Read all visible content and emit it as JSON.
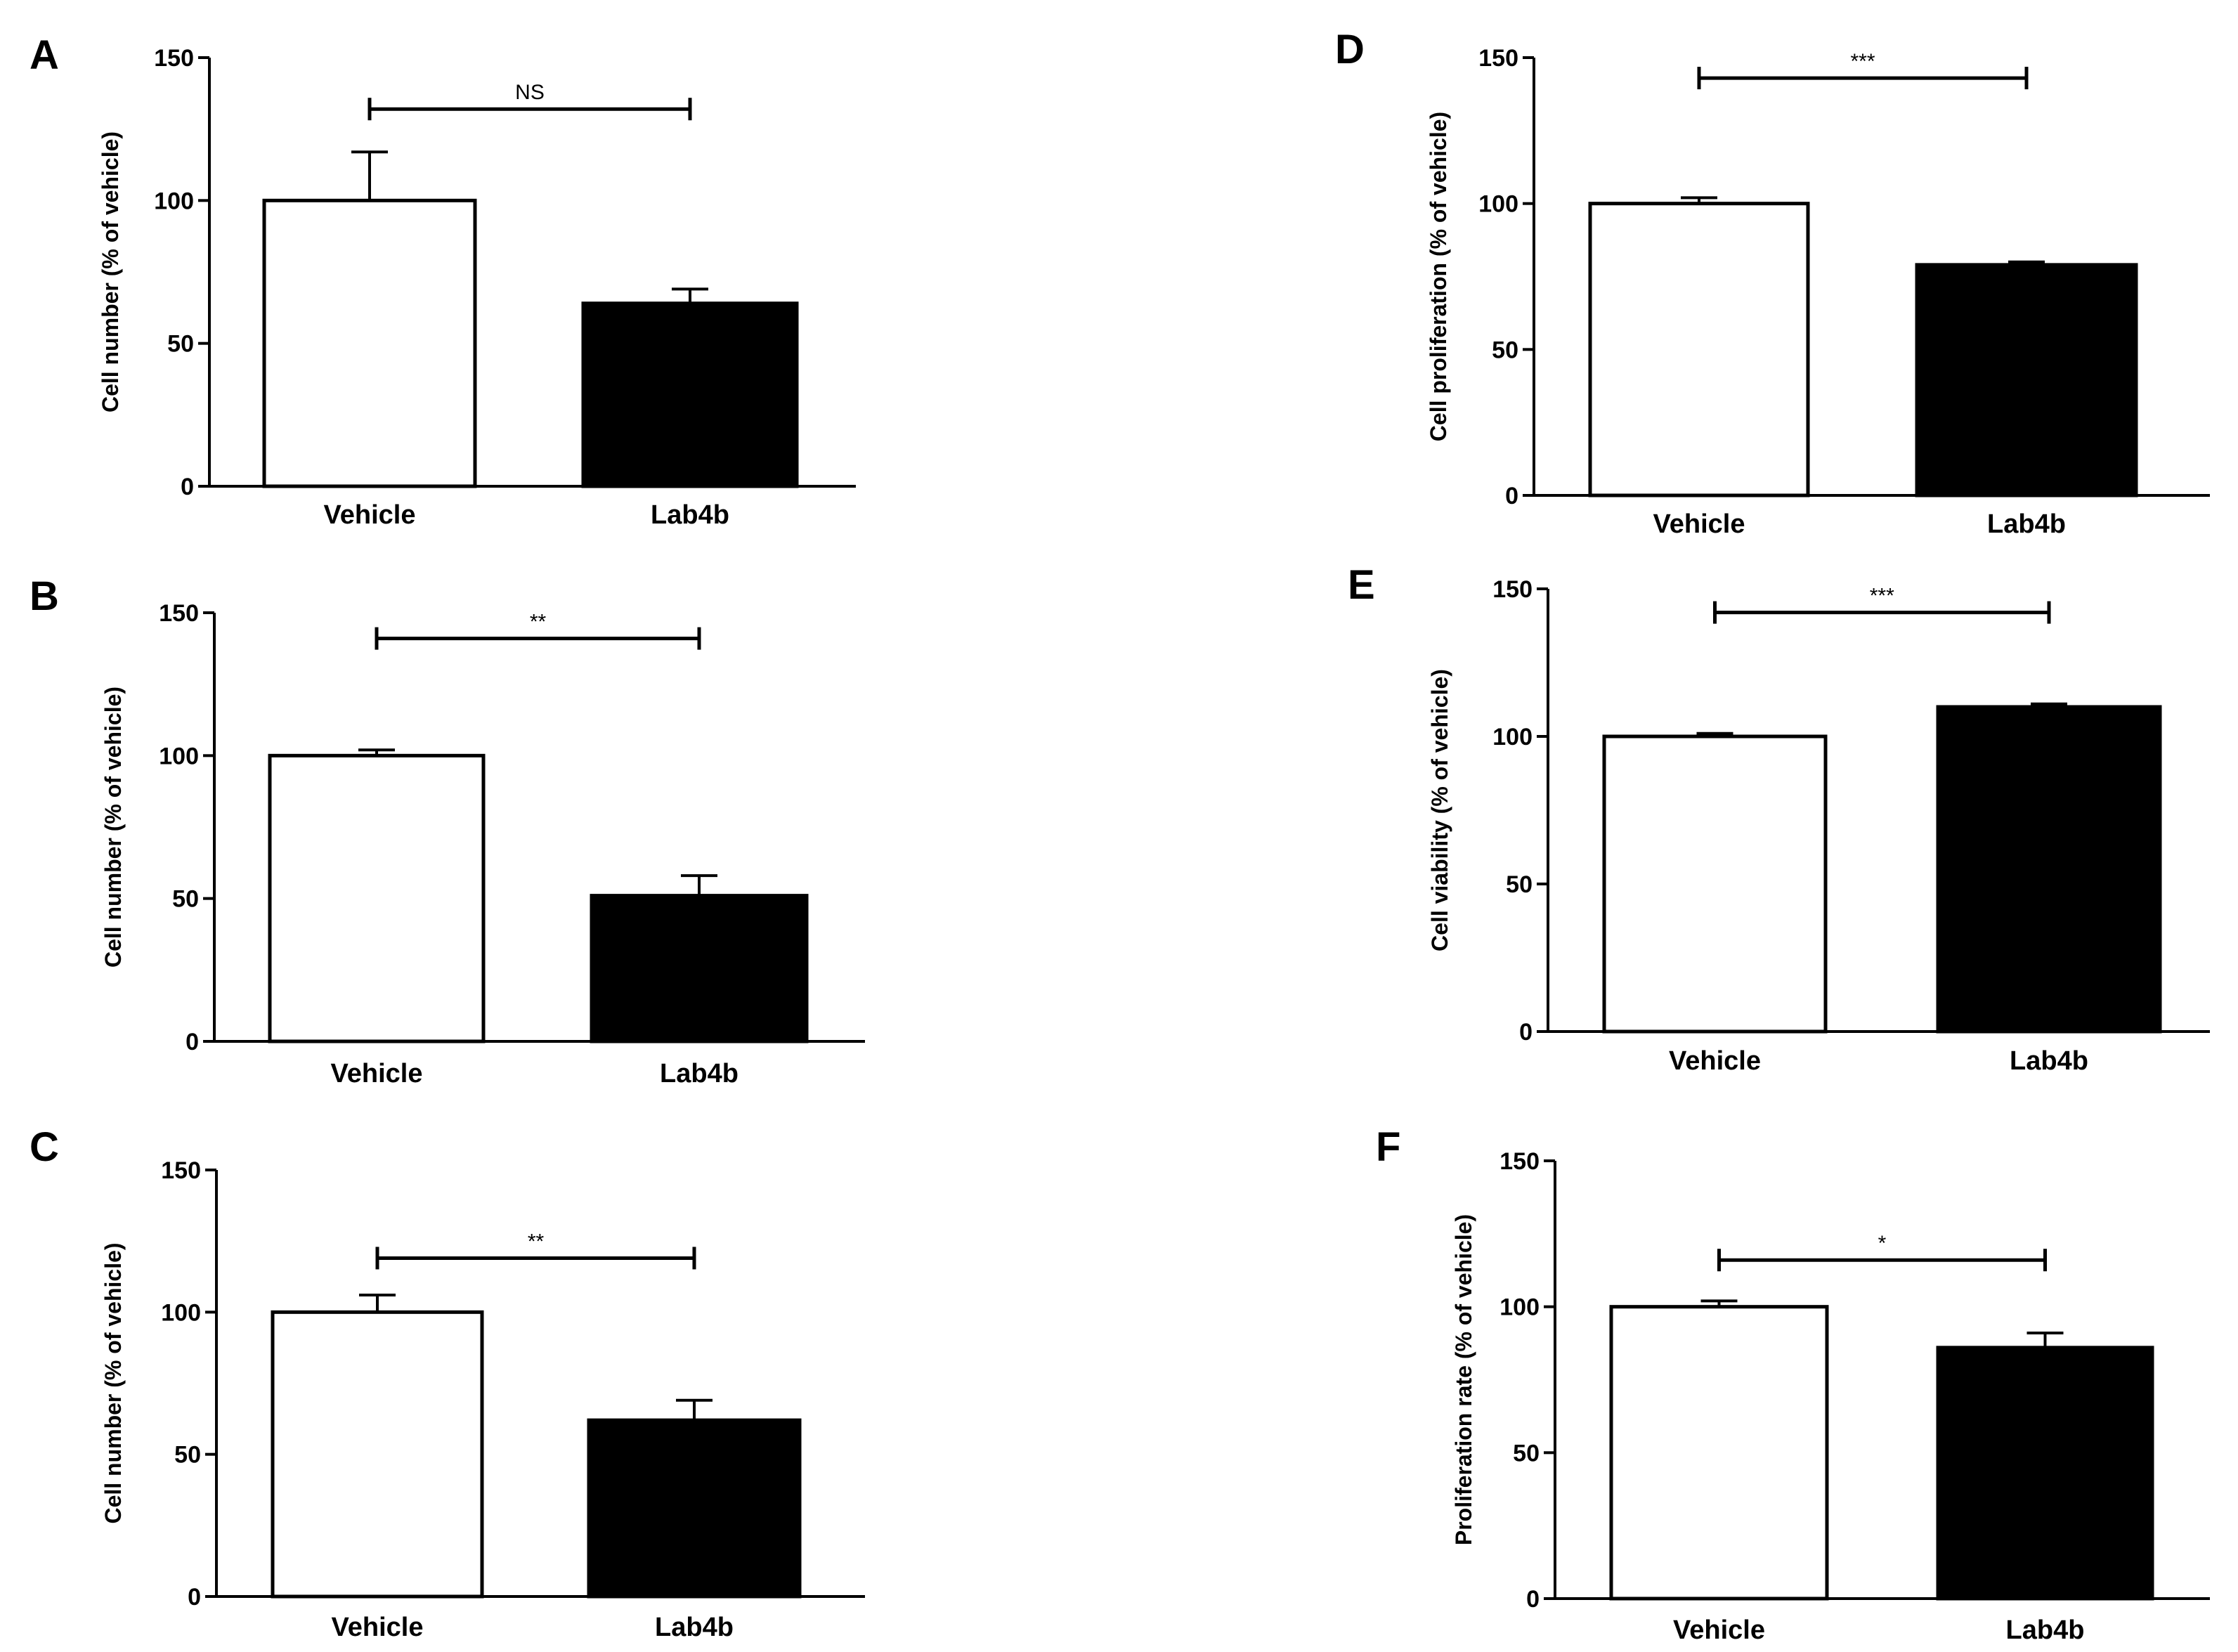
{
  "chart_data": [
    {
      "panel": "A",
      "type": "bar",
      "categories": [
        "Vehicle",
        "Lab4b"
      ],
      "values": [
        100,
        64
      ],
      "errors": [
        17,
        5
      ],
      "bar_colors": [
        "#ffffff",
        "#000000"
      ],
      "ylabel": "Cell number (% of vehicle)",
      "xlabel": "",
      "ylim": [
        0,
        150
      ],
      "yticks": [
        0,
        50,
        100,
        150
      ],
      "significance": {
        "label": "NS",
        "level": 132,
        "from": 0,
        "to": 1
      },
      "grid": false
    },
    {
      "panel": "B",
      "type": "bar",
      "categories": [
        "Vehicle",
        "Lab4b"
      ],
      "values": [
        100,
        51
      ],
      "errors": [
        2,
        7
      ],
      "bar_colors": [
        "#ffffff",
        "#000000"
      ],
      "ylabel": "Cell number (% of vehicle)",
      "xlabel": "",
      "ylim": [
        0,
        150
      ],
      "yticks": [
        0,
        50,
        100,
        150
      ],
      "significance": {
        "label": "**",
        "level": 141,
        "from": 0,
        "to": 1
      },
      "grid": false
    },
    {
      "panel": "C",
      "type": "bar",
      "categories": [
        "Vehicle",
        "Lab4b"
      ],
      "values": [
        100,
        62
      ],
      "errors": [
        6,
        7
      ],
      "bar_colors": [
        "#ffffff",
        "#000000"
      ],
      "ylabel": "Cell number (% of vehicle)",
      "xlabel": "",
      "ylim": [
        0,
        150
      ],
      "yticks": [
        0,
        50,
        100,
        150
      ],
      "significance": {
        "label": "**",
        "level": 119,
        "from": 0,
        "to": 1
      },
      "grid": false
    },
    {
      "panel": "D",
      "type": "bar",
      "categories": [
        "Vehicle",
        "Lab4b"
      ],
      "values": [
        100,
        79
      ],
      "errors": [
        2,
        1
      ],
      "bar_colors": [
        "#ffffff",
        "#000000"
      ],
      "ylabel": "Cell proliferation (% of vehicle)",
      "xlabel": "",
      "ylim": [
        0,
        150
      ],
      "yticks": [
        0,
        50,
        100,
        150
      ],
      "significance": {
        "label": "***",
        "level": 143,
        "from": 0,
        "to": 1
      },
      "grid": false
    },
    {
      "panel": "E",
      "type": "bar",
      "categories": [
        "Vehicle",
        "Lab4b"
      ],
      "values": [
        100,
        110
      ],
      "errors": [
        1,
        1
      ],
      "bar_colors": [
        "#ffffff",
        "#000000"
      ],
      "ylabel": "Cell viability (% of vehicle)",
      "xlabel": "",
      "ylim": [
        0,
        150
      ],
      "yticks": [
        0,
        50,
        100,
        150
      ],
      "significance": {
        "label": "***",
        "level": 142,
        "from": 0,
        "to": 1
      },
      "grid": false
    },
    {
      "panel": "F",
      "type": "bar",
      "categories": [
        "Vehicle",
        "Lab4b"
      ],
      "values": [
        100,
        86
      ],
      "errors": [
        2,
        5
      ],
      "bar_colors": [
        "#ffffff",
        "#000000"
      ],
      "ylabel": "Proliferation rate (% of vehicle)",
      "xlabel": "",
      "ylim": [
        0,
        150
      ],
      "yticks": [
        0,
        50,
        100,
        150
      ],
      "significance": {
        "label": "*",
        "level": 116,
        "from": 0,
        "to": 1
      },
      "grid": false
    }
  ]
}
